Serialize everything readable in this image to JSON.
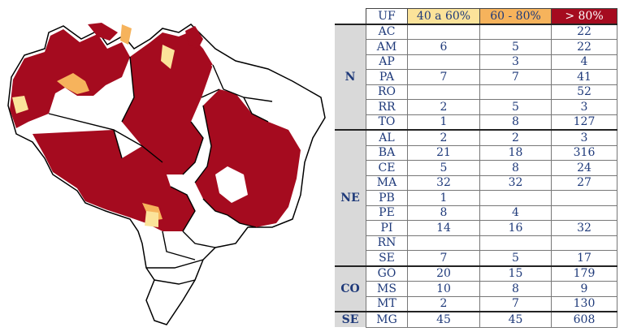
{
  "colors": {
    "high": "#a50b1f",
    "mid": "#f6b35c",
    "low": "#fbe39a",
    "border": "#000000",
    "region_bg": "#d9d9d9",
    "text": "#1f3a7a"
  },
  "table": {
    "headers": {
      "uf": "UF",
      "low": "40 a 60%",
      "mid": "60 - 80%",
      "high": "> 80%"
    },
    "groups": [
      {
        "region": "N",
        "rows": [
          {
            "uf": "AC",
            "low": "",
            "mid": "",
            "high": "22"
          },
          {
            "uf": "AM",
            "low": "6",
            "mid": "5",
            "high": "22"
          },
          {
            "uf": "AP",
            "low": "",
            "mid": "3",
            "high": "4"
          },
          {
            "uf": "PA",
            "low": "7",
            "mid": "7",
            "high": "41"
          },
          {
            "uf": "RO",
            "low": "",
            "mid": "",
            "high": "52"
          },
          {
            "uf": "RR",
            "low": "2",
            "mid": "5",
            "high": "3"
          },
          {
            "uf": "TO",
            "low": "1",
            "mid": "8",
            "high": "127"
          }
        ]
      },
      {
        "region": "NE",
        "rows": [
          {
            "uf": "AL",
            "low": "2",
            "mid": "2",
            "high": "3"
          },
          {
            "uf": "BA",
            "low": "21",
            "mid": "18",
            "high": "316"
          },
          {
            "uf": "CE",
            "low": "5",
            "mid": "8",
            "high": "24"
          },
          {
            "uf": "MA",
            "low": "32",
            "mid": "32",
            "high": "27"
          },
          {
            "uf": "PB",
            "low": "1",
            "mid": "",
            "high": ""
          },
          {
            "uf": "PE",
            "low": "8",
            "mid": "4",
            "high": ""
          },
          {
            "uf": "PI",
            "low": "14",
            "mid": "16",
            "high": "32"
          },
          {
            "uf": "RN",
            "low": "",
            "mid": "",
            "high": ""
          },
          {
            "uf": "SE",
            "low": "7",
            "mid": "5",
            "high": "17"
          }
        ]
      },
      {
        "region": "CO",
        "rows": [
          {
            "uf": "GO",
            "low": "20",
            "mid": "15",
            "high": "179"
          },
          {
            "uf": "MS",
            "low": "10",
            "mid": "8",
            "high": "9"
          },
          {
            "uf": "MT",
            "low": "2",
            "mid": "7",
            "high": "130"
          }
        ]
      },
      {
        "region": "SE",
        "rows": [
          {
            "uf": "MG",
            "low": "45",
            "mid": "45",
            "high": "608"
          }
        ]
      }
    ]
  }
}
